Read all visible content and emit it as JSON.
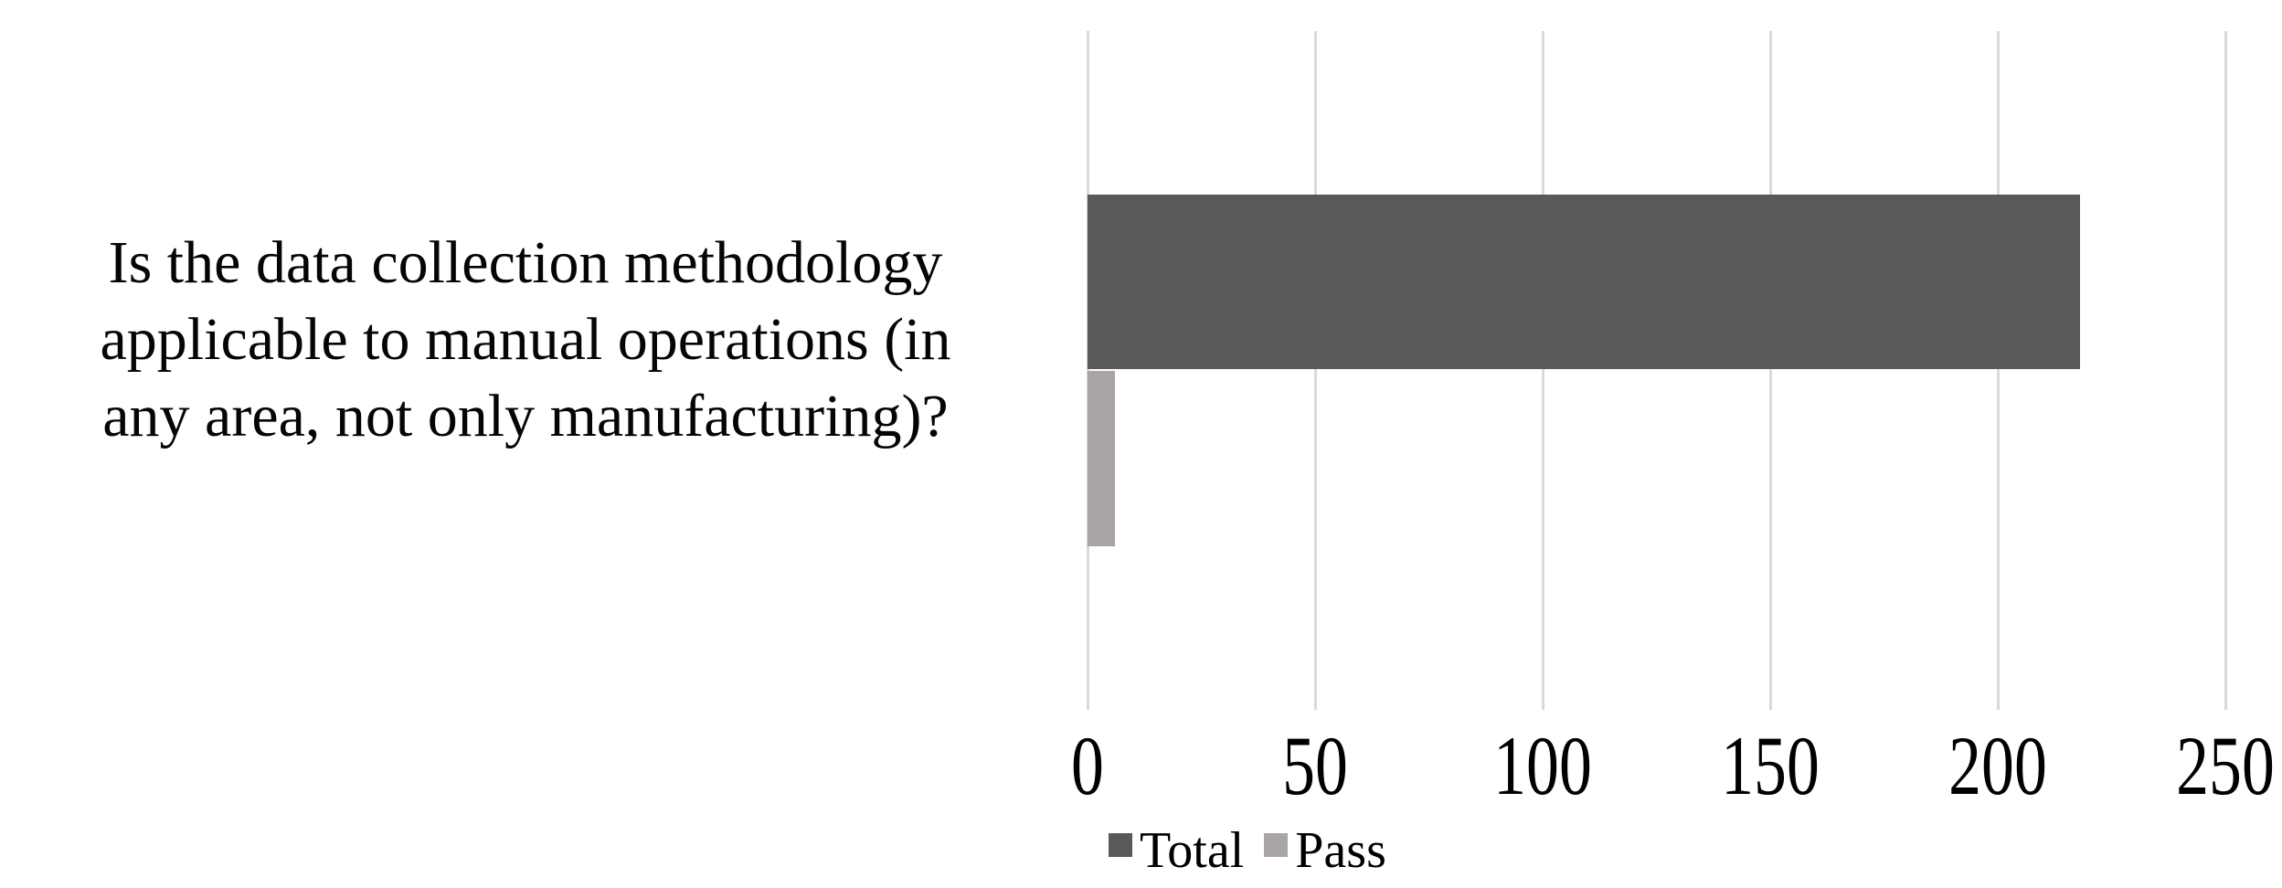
{
  "chart_data": {
    "type": "bar",
    "orientation": "horizontal",
    "title": "",
    "xlabel": "",
    "ylabel": "",
    "categories": [
      "Is the data collection methodology applicable to manual operations (in any area, not only manufacturing)?"
    ],
    "category_label_lines": [
      "Is the data collection methodology",
      "applicable to manual operations (in",
      "any area, not only manufacturing)?"
    ],
    "series": [
      {
        "name": "Total",
        "values": [
          218
        ],
        "color": "#595959"
      },
      {
        "name": "Pass",
        "values": [
          6
        ],
        "color": "#a8a5a4"
      }
    ],
    "xlim": [
      0,
      250
    ],
    "x_ticks": [
      0,
      50,
      100,
      150,
      200,
      250
    ],
    "gridlines": "vertical-major",
    "gridline_color": "#d9d9d9",
    "legend_position": "bottom",
    "background_color": "#ffffff"
  }
}
